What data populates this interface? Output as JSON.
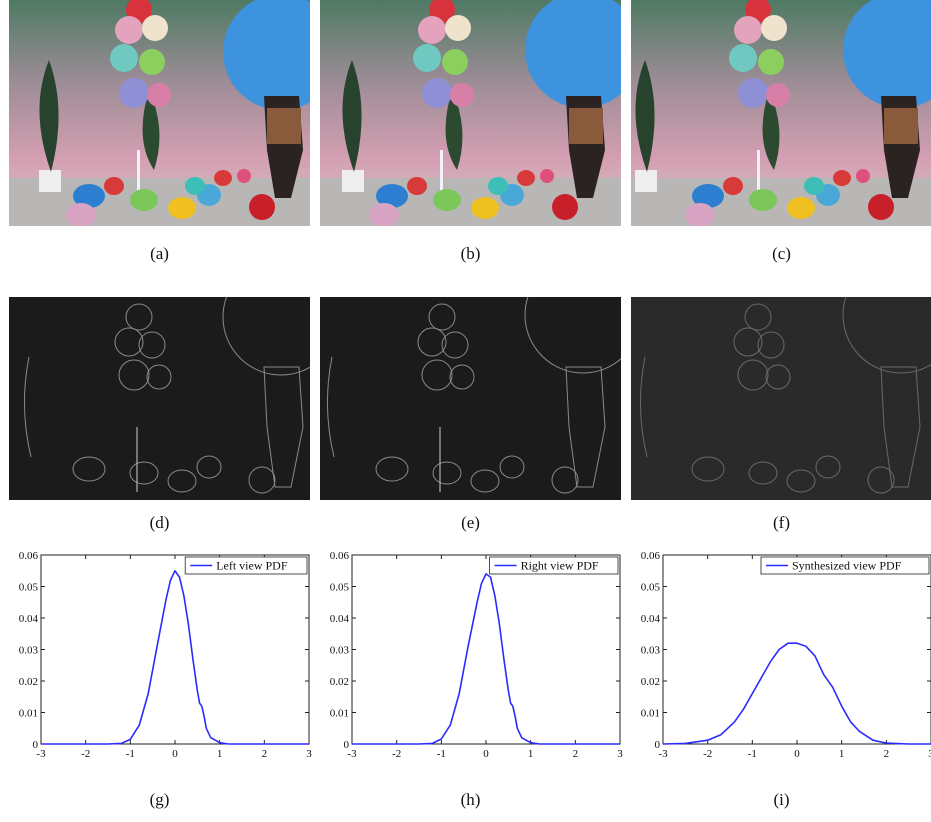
{
  "figure": {
    "captions": [
      "(a)",
      "(b)",
      "(c)",
      "(d)",
      "(e)",
      "(f)",
      "(g)",
      "(h)",
      "(i)"
    ]
  },
  "chart_data": [
    {
      "type": "line",
      "series": [
        {
          "name": "Left view PDF",
          "color": "#2b2bff",
          "x": [
            -3,
            -2,
            -1.5,
            -1.2,
            -1,
            -0.8,
            -0.6,
            -0.4,
            -0.2,
            -0.1,
            0,
            0.1,
            0.2,
            0.3,
            0.4,
            0.5,
            0.55,
            0.6,
            0.65,
            0.7,
            0.8,
            1,
            1.2,
            1.5,
            2,
            3
          ],
          "y": [
            0,
            0,
            0,
            0.0002,
            0.0015,
            0.006,
            0.016,
            0.031,
            0.046,
            0.052,
            0.055,
            0.053,
            0.047,
            0.038,
            0.027,
            0.017,
            0.013,
            0.012,
            0.009,
            0.005,
            0.002,
            0.0004,
            0,
            0,
            0,
            0
          ]
        }
      ],
      "x_ticks": [
        "-3",
        "-2",
        "-1",
        "0",
        "1",
        "2",
        "3"
      ],
      "y_ticks": [
        "0",
        "0.01",
        "0.02",
        "0.03",
        "0.04",
        "0.05",
        "0.06"
      ],
      "xlim": [
        -3,
        3
      ],
      "ylim": [
        0,
        0.06
      ],
      "legend": "top-right"
    },
    {
      "type": "line",
      "series": [
        {
          "name": "Right view PDF",
          "color": "#2b2bff",
          "x": [
            -3,
            -2,
            -1.5,
            -1.2,
            -1,
            -0.8,
            -0.6,
            -0.4,
            -0.2,
            -0.1,
            0,
            0.1,
            0.2,
            0.3,
            0.4,
            0.5,
            0.55,
            0.6,
            0.65,
            0.7,
            0.8,
            1,
            1.2,
            1.5,
            2,
            3
          ],
          "y": [
            0,
            0,
            0,
            0.0002,
            0.0016,
            0.006,
            0.016,
            0.031,
            0.045,
            0.051,
            0.054,
            0.053,
            0.047,
            0.038,
            0.027,
            0.017,
            0.013,
            0.012,
            0.009,
            0.005,
            0.002,
            0.0004,
            0,
            0,
            0,
            0
          ]
        }
      ],
      "x_ticks": [
        "-3",
        "-2",
        "-1",
        "0",
        "1",
        "2",
        "3"
      ],
      "y_ticks": [
        "0",
        "0.01",
        "0.02",
        "0.03",
        "0.04",
        "0.05",
        "0.06"
      ],
      "xlim": [
        -3,
        3
      ],
      "ylim": [
        0,
        0.06
      ],
      "legend": "top-right"
    },
    {
      "type": "line",
      "series": [
        {
          "name": "Synthesized view PDF",
          "color": "#2b2bff",
          "x": [
            -3,
            -2.5,
            -2,
            -1.7,
            -1.4,
            -1.2,
            -1,
            -0.8,
            -0.6,
            -0.4,
            -0.2,
            0,
            0.2,
            0.4,
            0.5,
            0.6,
            0.8,
            1,
            1.2,
            1.4,
            1.7,
            2,
            2.5,
            3
          ],
          "y": [
            0,
            0.0002,
            0.0012,
            0.003,
            0.007,
            0.011,
            0.016,
            0.021,
            0.026,
            0.03,
            0.032,
            0.032,
            0.031,
            0.028,
            0.025,
            0.022,
            0.018,
            0.012,
            0.007,
            0.004,
            0.0012,
            0.0003,
            0,
            0
          ]
        }
      ],
      "x_ticks": [
        "-3",
        "-2",
        "-1",
        "0",
        "1",
        "2",
        "3"
      ],
      "y_ticks": [
        "0",
        "0.01",
        "0.02",
        "0.03",
        "0.04",
        "0.05",
        "0.06"
      ],
      "xlim": [
        -3,
        3
      ],
      "ylim": [
        0,
        0.06
      ],
      "legend": "top-right"
    }
  ]
}
